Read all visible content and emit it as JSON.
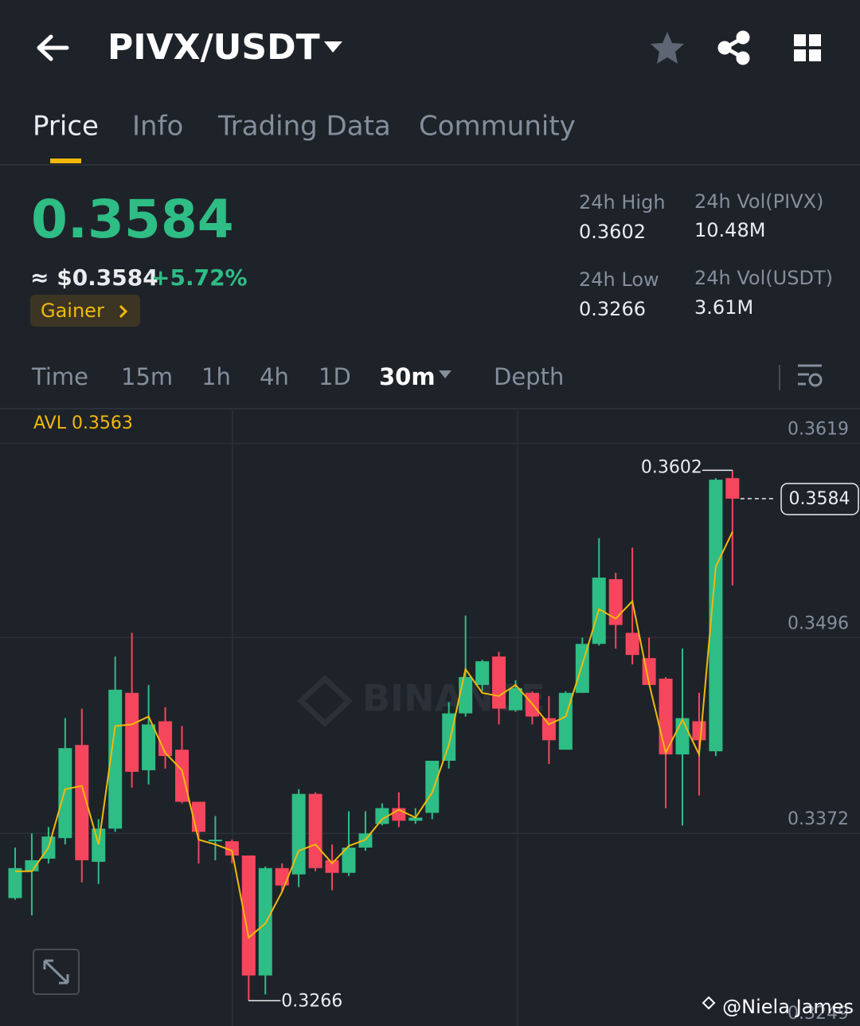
{
  "header": {
    "pair": "PIVX/USDT"
  },
  "tabs": [
    "Price",
    "Info",
    "Trading Data",
    "Community"
  ],
  "price": {
    "last": "0.3584",
    "usd": "≈ $0.3584",
    "change": "+5.72%",
    "badge": "Gainer"
  },
  "stats": [
    {
      "label": "24h High",
      "value": "0.3602"
    },
    {
      "label": "24h Vol(PIVX)",
      "value": "10.48M"
    },
    {
      "label": "24h Low",
      "value": "0.3266"
    },
    {
      "label": "24h Vol(USDT)",
      "value": "3.61M"
    }
  ],
  "intervals": [
    "Time",
    "15m",
    "1h",
    "4h",
    "1D",
    "30m",
    "Depth"
  ],
  "chart_data": {
    "type": "candlestick",
    "avl_label": "AVL 0.3563",
    "watermark": "BINANCE",
    "open": [
      0.3331,
      0.3348,
      0.3356,
      0.3369,
      0.3428,
      0.3354,
      0.3375,
      0.3461,
      0.3412,
      0.3443,
      0.3425,
      0.3392,
      0.3367,
      0.3367,
      0.3358,
      0.3282,
      0.335,
      0.3346,
      0.3397,
      0.3355,
      0.3347,
      0.3363,
      0.3378,
      0.3388,
      0.338,
      0.3385,
      0.3418,
      0.3448,
      0.3466,
      0.3484,
      0.345,
      0.3461,
      0.3445,
      0.3425,
      0.3461,
      0.3492,
      0.3533,
      0.3499,
      0.3483,
      0.347,
      0.3422,
      0.3443,
      0.3424,
      0.3597
    ],
    "high": [
      0.3363,
      0.3372,
      0.3376,
      0.3445,
      0.3451,
      0.3381,
      0.3484,
      0.3499,
      0.3466,
      0.3452,
      0.344,
      0.3392,
      0.3383,
      0.3368,
      0.3358,
      0.3351,
      0.3353,
      0.34,
      0.3398,
      0.3365,
      0.3386,
      0.3386,
      0.3391,
      0.3398,
      0.3388,
      0.3418,
      0.3455,
      0.351,
      0.3482,
      0.3487,
      0.3469,
      0.3462,
      0.3459,
      0.3462,
      0.3496,
      0.3559,
      0.3537,
      0.3553,
      0.3496,
      0.3471,
      0.3489,
      0.3461,
      0.3597,
      0.3602
    ],
    "low": [
      0.333,
      0.332,
      0.3353,
      0.3365,
      0.3341,
      0.334,
      0.3373,
      0.3401,
      0.3403,
      0.3413,
      0.3391,
      0.3353,
      0.3355,
      0.3353,
      0.3266,
      0.327,
      0.3335,
      0.3338,
      0.3348,
      0.3336,
      0.3345,
      0.3361,
      0.3377,
      0.3376,
      0.3378,
      0.3381,
      0.3413,
      0.3446,
      0.3462,
      0.3441,
      0.3449,
      0.3441,
      0.3416,
      0.3425,
      0.3461,
      0.3491,
      0.3489,
      0.3479,
      0.3466,
      0.3388,
      0.3377,
      0.3396,
      0.3421,
      0.3529
    ],
    "close": [
      0.335,
      0.3355,
      0.337,
      0.3426,
      0.3355,
      0.3375,
      0.3463,
      0.3411,
      0.3441,
      0.3421,
      0.3392,
      0.3373,
      0.3368,
      0.3358,
      0.3282,
      0.335,
      0.3339,
      0.3397,
      0.335,
      0.3347,
      0.3363,
      0.3372,
      0.3388,
      0.338,
      0.3382,
      0.3418,
      0.3448,
      0.3471,
      0.3481,
      0.3451,
      0.3464,
      0.3446,
      0.3431,
      0.3461,
      0.3492,
      0.3534,
      0.3504,
      0.3485,
      0.3466,
      0.3422,
      0.3445,
      0.3431,
      0.3596,
      0.3584
    ],
    "avl": [
      0.3348,
      0.3348,
      0.3363,
      0.34,
      0.3402,
      0.3365,
      0.344,
      0.3441,
      0.3446,
      0.3423,
      0.3412,
      0.3368,
      0.3365,
      0.3361,
      0.3306,
      0.3315,
      0.3335,
      0.3361,
      0.3365,
      0.3353,
      0.3364,
      0.3368,
      0.3381,
      0.3387,
      0.3382,
      0.3398,
      0.3428,
      0.3476,
      0.3461,
      0.3459,
      0.3466,
      0.3454,
      0.3441,
      0.3446,
      0.3479,
      0.3514,
      0.3508,
      0.3519,
      0.3467,
      0.3423,
      0.3444,
      0.3422,
      0.3541,
      0.3563
    ],
    "colors": {
      "up": "#2ebd85",
      "down": "#f6465d",
      "avl": "#f0b90b"
    },
    "ylim": [
      0.325,
      0.364
    ],
    "yticks": [
      0.3619,
      0.3496,
      0.3372,
      0.3249
    ],
    "grid": true,
    "annotations": {
      "high": 0.3602,
      "low": 0.3266,
      "last": 0.3584
    }
  },
  "credit": "@Niela James"
}
